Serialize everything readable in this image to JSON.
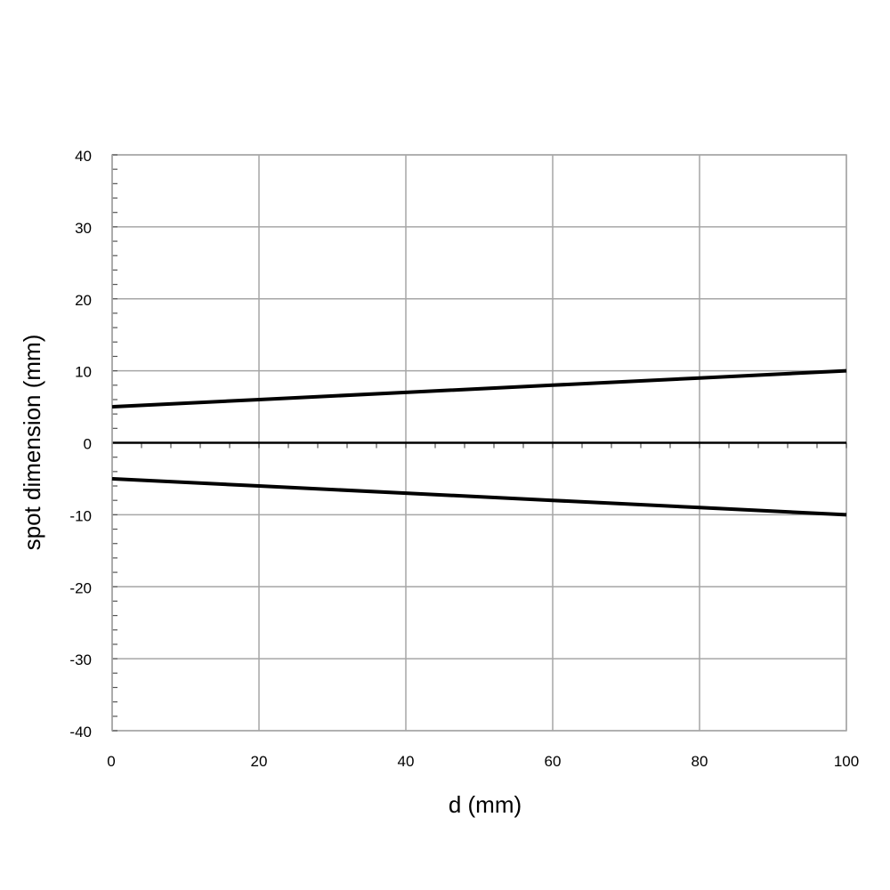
{
  "chart_data": {
    "type": "line",
    "title": "",
    "xlabel": "d (mm)",
    "ylabel": "spot dimension (mm)",
    "xlim": [
      0,
      100
    ],
    "ylim": [
      -40,
      40
    ],
    "x_ticks": [
      0,
      20,
      40,
      60,
      80,
      100
    ],
    "y_ticks": [
      40,
      30,
      20,
      10,
      0,
      -10,
      -20,
      -30,
      -40
    ],
    "x_tick_labels": [
      "0",
      "20",
      "40",
      "60",
      "80",
      "100"
    ],
    "y_tick_labels": [
      "40",
      "30",
      "20",
      "10",
      "0",
      "-10",
      "-20",
      "-30",
      "-40"
    ],
    "grid": true,
    "legend": "none",
    "series": [
      {
        "x": [
          0,
          20,
          40,
          60,
          80,
          100
        ],
        "y": [
          5,
          6,
          7,
          8,
          9,
          10
        ],
        "color": "#000000"
      },
      {
        "x": [
          0,
          20,
          40,
          60,
          80,
          100
        ],
        "y": [
          -5,
          -6,
          -7,
          -8,
          -9,
          -10
        ],
        "color": "#000000"
      }
    ]
  }
}
